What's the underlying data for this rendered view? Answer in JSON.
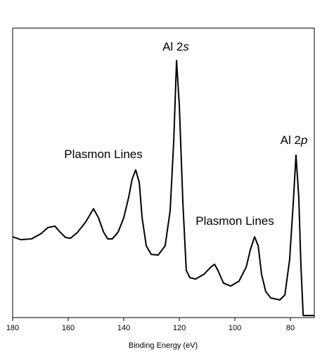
{
  "chart_data": {
    "type": "line",
    "x_label": "Binding Energy (eV)",
    "xlim": [
      180,
      71.4
    ],
    "xticks": [
      180,
      160,
      140,
      120,
      100,
      80
    ],
    "ylim": [
      0,
      100
    ],
    "color": "#000000",
    "x": [
      180,
      177.0,
      173.2,
      169.9,
      167.3,
      164.8,
      163.0,
      161.0,
      159.2,
      156.7,
      153.7,
      150.9,
      149.1,
      147.3,
      145.8,
      144.1,
      142.0,
      140.0,
      138.2,
      137.0,
      135.7,
      134.4,
      133.4,
      131.9,
      130.1,
      127.6,
      125.1,
      123.3,
      122.0,
      121.0,
      120.0,
      118.7,
      117.5,
      116.2,
      114.2,
      111.1,
      108.6,
      107.3,
      106.1,
      104.1,
      101.5,
      98.5,
      95.9,
      94.4,
      92.9,
      91.6,
      90.4,
      88.9,
      87.1,
      83.8,
      82.0,
      80.3,
      79.0,
      78.0,
      77.0,
      76.2,
      75.4,
      71.4
    ],
    "values": [
      27.9,
      26.9,
      27.2,
      28.9,
      31.1,
      31.6,
      29.6,
      27.7,
      27.4,
      29.4,
      33.0,
      37.6,
      34.5,
      29.6,
      27.2,
      27.2,
      29.6,
      34.5,
      41.7,
      47.8,
      51.0,
      46.6,
      34.5,
      24.8,
      21.8,
      21.6,
      24.8,
      36.9,
      61.2,
      88.8,
      73.3,
      39.3,
      16.3,
      13.8,
      13.3,
      15.0,
      17.5,
      18.4,
      16.3,
      11.9,
      10.9,
      12.6,
      17.5,
      23.5,
      27.9,
      24.8,
      15.0,
      9.0,
      6.8,
      6.1,
      7.8,
      19.9,
      39.3,
      56.1,
      41.7,
      17.5,
      0.7,
      0.7
    ],
    "annotations": [
      {
        "text": "Al 2",
        "italic": "s"
      },
      {
        "text": "Plasmon Lines"
      },
      {
        "text": "Plasmon Lines"
      },
      {
        "text": "Al 2",
        "italic": "p"
      }
    ]
  }
}
